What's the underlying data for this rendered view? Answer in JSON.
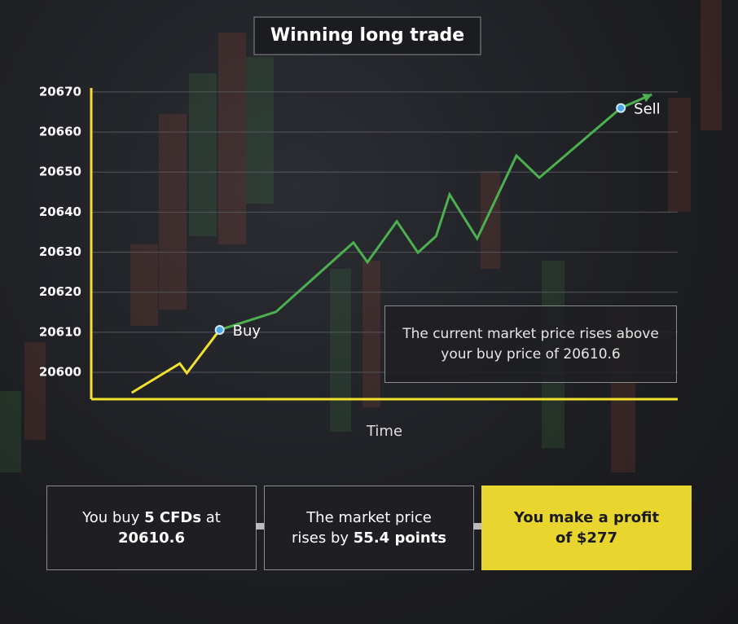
{
  "chart_data": {
    "type": "line",
    "title": "Winning long trade",
    "x_label": "Time",
    "xlim": [
      0,
      100
    ],
    "ylim": [
      20593.3,
      20671
    ],
    "yticks": [
      20600,
      20610,
      20620,
      20630,
      20640,
      20650,
      20660,
      20670
    ],
    "grid": true,
    "series": [
      {
        "color": "#f2e12c",
        "x": [
          6.9,
          15.1,
          16.3,
          21.9
        ],
        "values": [
          20594.9,
          20602.2,
          20599.8,
          20610.6
        ]
      },
      {
        "color": "#4caf50",
        "x": [
          21.9,
          31.5,
          44.7,
          47.1,
          52.1,
          55.7,
          58.8,
          61.1,
          65.8,
          72.5,
          76.4,
          90.3,
          95.6
        ],
        "values": [
          20610.6,
          20615.1,
          20632.4,
          20627.5,
          20637.7,
          20629.9,
          20634.0,
          20644.4,
          20633.4,
          20654.1,
          20648.6,
          20666.0,
          20669.4
        ]
      }
    ],
    "buy_label": "Buy",
    "sell_label": "Sell",
    "callout": "The current market price rises above your buy price of 20610.6"
  },
  "steps": [
    {
      "parts": [
        "You buy",
        "5 CFDs",
        "at",
        "20610.6"
      ]
    },
    {
      "parts": [
        "The market price rises by",
        "55.4 points"
      ]
    },
    {
      "parts": [
        "You make a profit of",
        "$277"
      ]
    }
  ]
}
